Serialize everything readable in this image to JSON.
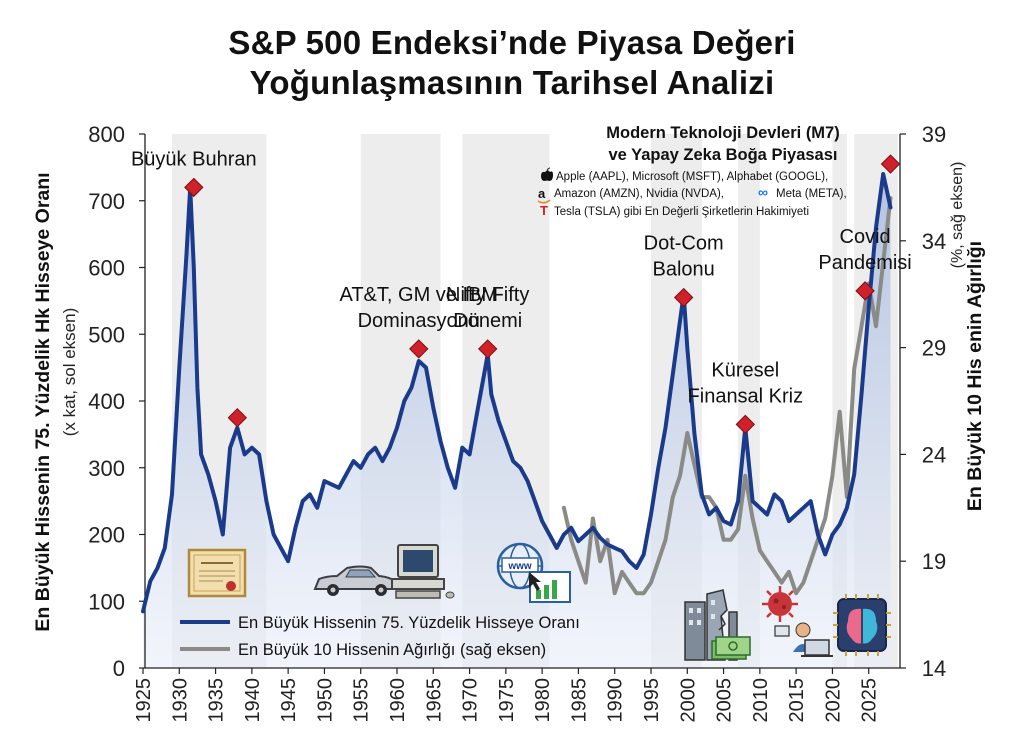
{
  "title_line1": "S&P 500 Endeksi’nde Piyasa Değeri",
  "title_line2": "Yoğunlaşmasının Tarihsel Analizi",
  "colors": {
    "primary_series": "#1a3a8c",
    "secondary_series": "#8a8a86",
    "marker": "#d0202a",
    "area_fill": "#c7d3ea",
    "shade": "#ededed"
  },
  "icons": [
    "certificate-icon",
    "classic-car-icon",
    "computer-icon",
    "www-browser-icon",
    "collapsing-buildings-icon",
    "money-icon",
    "virus-icon",
    "remote-worker-icon",
    "ai-chip-brain-icon",
    "apple-icon",
    "amazon-icon",
    "meta-icon",
    "tesla-icon"
  ],
  "m7": {
    "heading1": "Modern Teknoloji Devleri (M7)",
    "heading2": "ve Yapay Zeka Boğa Piyasası",
    "line1": "Apple (AAPL), Microsoft (MSFT), Alphabet (GOOGL),",
    "line2": "Amazon (AMZN), Nvidia (NVDA),",
    "line2b": "Meta (META),",
    "line3": "Tesla (TSLA) gibi En Değerli Şirketlerin Hakimiyeti"
  },
  "chart_data": {
    "type": "line",
    "left_axis": {
      "label_line1": "En Büyük Hissenin 75. Yüzdelik Hk Hisseye Oranı",
      "label_line2": "(x kat, sol eksen)",
      "ylim": [
        0,
        800
      ],
      "ticks": [
        "0",
        "100",
        "200",
        "300",
        "400",
        "500",
        "600",
        "700",
        "800"
      ]
    },
    "right_axis": {
      "label_line1": "En Büyük 10 His enin Ağırlığı",
      "label_line2": "(%, sağ eksen)",
      "ylim": [
        14,
        39
      ],
      "ticks": [
        "14",
        "19",
        "24",
        "29",
        "34",
        "39"
      ]
    },
    "x_axis": {
      "xlim": [
        1925,
        2030
      ],
      "ticks": [
        "1925",
        "1930",
        "1935",
        "1940",
        "1945",
        "1950",
        "1955",
        "1960",
        "1965",
        "1970",
        "1975",
        "1980",
        "1985",
        "1990",
        "1995",
        "2000",
        "2005",
        "2010",
        "2015",
        "2020",
        "2025"
      ]
    },
    "shaded_eras": [
      [
        1929,
        1942
      ],
      [
        1955,
        1966
      ],
      [
        1969,
        1981
      ],
      [
        1995,
        2002
      ],
      [
        2007,
        2010
      ],
      [
        2020,
        2022
      ],
      [
        2023,
        2029
      ]
    ],
    "series": [
      {
        "name": "En Büyük Hissenin 75. Yüzdelik Hisseye Oranı",
        "axis": "left",
        "x": [
          1925,
          1926,
          1927,
          1928,
          1929,
          1930,
          1931,
          1931.5,
          1932,
          1932.5,
          1933,
          1934,
          1935,
          1936,
          1937,
          1938,
          1939,
          1940,
          1941,
          1942,
          1943,
          1944,
          1945,
          1946,
          1947,
          1948,
          1949,
          1950,
          1952,
          1954,
          1955,
          1956,
          1957,
          1958,
          1959,
          1960,
          1961,
          1962,
          1963,
          1964,
          1965,
          1966,
          1967,
          1968,
          1969,
          1970,
          1971,
          1972,
          1972.5,
          1973,
          1974,
          1975,
          1976,
          1977,
          1978,
          1979,
          1980,
          1981,
          1982,
          1983,
          1984,
          1985,
          1986,
          1987,
          1988,
          1989,
          1990,
          1991,
          1992,
          1993,
          1994,
          1995,
          1996,
          1997,
          1998,
          1999,
          1999.5,
          2000,
          2001,
          2002,
          2003,
          2004,
          2005,
          2006,
          2007,
          2008,
          2009,
          2010,
          2011,
          2012,
          2013,
          2014,
          2015,
          2016,
          2017,
          2018,
          2019,
          2020,
          2021,
          2022,
          2023,
          2024,
          2025,
          2026,
          2027,
          2028
        ],
        "y": [
          85,
          130,
          150,
          180,
          260,
          450,
          620,
          720,
          600,
          420,
          320,
          290,
          250,
          200,
          330,
          360,
          320,
          330,
          320,
          250,
          200,
          180,
          160,
          210,
          250,
          260,
          240,
          280,
          270,
          310,
          300,
          320,
          330,
          310,
          330,
          360,
          400,
          420,
          460,
          450,
          390,
          340,
          300,
          270,
          330,
          320,
          380,
          440,
          470,
          410,
          370,
          340,
          310,
          300,
          280,
          250,
          220,
          200,
          180,
          200,
          210,
          190,
          200,
          210,
          195,
          185,
          180,
          175,
          160,
          150,
          170,
          230,
          300,
          360,
          440,
          520,
          560,
          480,
          350,
          260,
          230,
          240,
          220,
          215,
          250,
          360,
          250,
          240,
          230,
          260,
          250,
          220,
          230,
          240,
          250,
          200,
          170,
          200,
          215,
          240,
          290,
          410,
          540,
          660,
          740,
          690
        ],
        "color": "#1a3a8c"
      },
      {
        "name": "En Büyük 10 Hissenin Ağırlığı (sağ eksen)",
        "axis": "right",
        "x": [
          1983,
          1984,
          1985,
          1986,
          1987,
          1988,
          1989,
          1990,
          1991,
          1992,
          1993,
          1994,
          1995,
          1996,
          1997,
          1998,
          1999,
          2000,
          2001,
          2002,
          2003,
          2004,
          2005,
          2006,
          2007,
          2008,
          2009,
          2010,
          2011,
          2012,
          2013,
          2014,
          2015,
          2016,
          2017,
          2018,
          2019,
          2020,
          2021,
          2022,
          2023,
          2024,
          2025,
          2026,
          2027,
          2028
        ],
        "y": [
          21.5,
          20,
          19,
          18,
          21,
          19,
          20,
          17.5,
          18.5,
          18,
          17.5,
          17.5,
          18,
          19,
          20,
          22,
          23,
          25,
          23.5,
          22,
          22,
          21.5,
          20,
          20,
          20.5,
          23,
          21,
          19.5,
          19,
          18.5,
          18,
          18.5,
          17.5,
          18,
          19,
          20,
          21,
          23,
          26,
          22,
          28,
          30,
          32,
          30,
          33,
          36
        ],
        "color": "#8a8a86"
      }
    ],
    "peaks": [
      {
        "x": 1932,
        "y": 720,
        "label": "Büyük Buhran"
      },
      {
        "x": 1938,
        "y": 375
      },
      {
        "x": 1963,
        "y": 478,
        "label_lines": [
          "AT&T, GM ve IBM",
          "Dominasyonu"
        ]
      },
      {
        "x": 1972.5,
        "y": 478,
        "label_lines": [
          "Nifty Fifty",
          "Dönemi"
        ]
      },
      {
        "x": 1999.5,
        "y": 555,
        "label_lines": [
          "Dot-Com",
          "Balonu"
        ]
      },
      {
        "x": 2008,
        "y": 365,
        "label_lines": [
          "Küresel",
          "Finansal Kriz"
        ]
      },
      {
        "x": 2024.5,
        "y": 565,
        "label_lines": [
          "Covid",
          "Pandemisi"
        ]
      },
      {
        "x": 2028,
        "y": 755
      }
    ],
    "legend": {
      "position": "bottom-left",
      "items": [
        "En Büyük Hissenin 75. Yüzdelik Hisseye Oranı",
        "En Büyük 10 Hissenin Ağırlığı (sağ eksen)"
      ]
    }
  }
}
